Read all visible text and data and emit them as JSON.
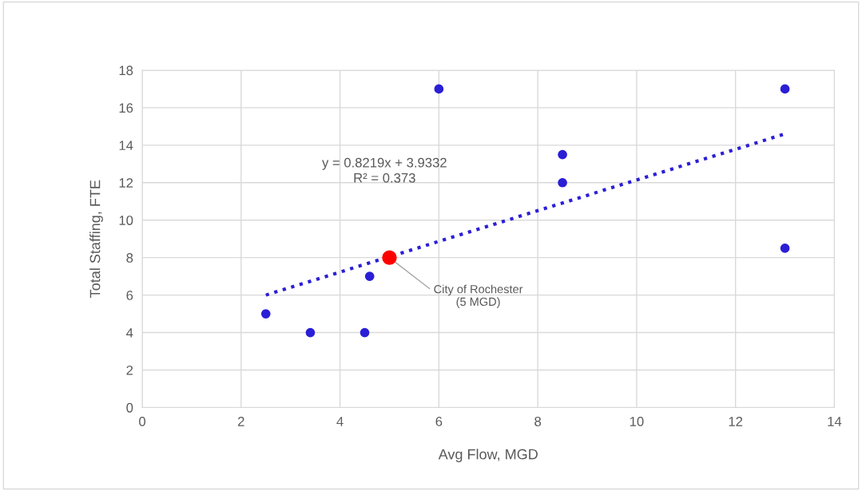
{
  "chart_data": {
    "type": "scatter",
    "xlabel": "Avg Flow, MGD",
    "ylabel": "Total Staffing, FTE",
    "series": [
      {
        "type": "scatter",
        "color": "#2b1fd6",
        "x": [
          2.5,
          3.4,
          4.5,
          4.6,
          6,
          8.5,
          8.5,
          13,
          13
        ],
        "values": [
          5,
          4,
          4,
          7,
          17,
          13.5,
          12,
          17,
          8.5
        ]
      },
      {
        "type": "scatter",
        "color": "#ff0000",
        "x": [
          5
        ],
        "values": [
          8
        ]
      },
      {
        "type": "line",
        "color": "#2b1fd6",
        "line_style": "dotted",
        "marker": "none",
        "x": [
          2.5,
          13
        ],
        "values": [
          6,
          14.6
        ]
      }
    ],
    "annotations": [
      "y = 0.8219x + 3.9332\nR² = 0.373",
      {
        "text": "City of Rochester\n(5 MGD)",
        "x": 5,
        "y": 8
      }
    ],
    "xlim": [
      0,
      14
    ],
    "xticks": [
      0,
      2,
      4,
      6,
      8,
      10,
      12,
      14
    ],
    "ylim": [
      0,
      18
    ],
    "yticks": [
      0,
      2,
      4,
      6,
      8,
      10,
      12,
      14,
      16,
      18
    ],
    "grid": true,
    "marker": "circle",
    "legend": false
  }
}
